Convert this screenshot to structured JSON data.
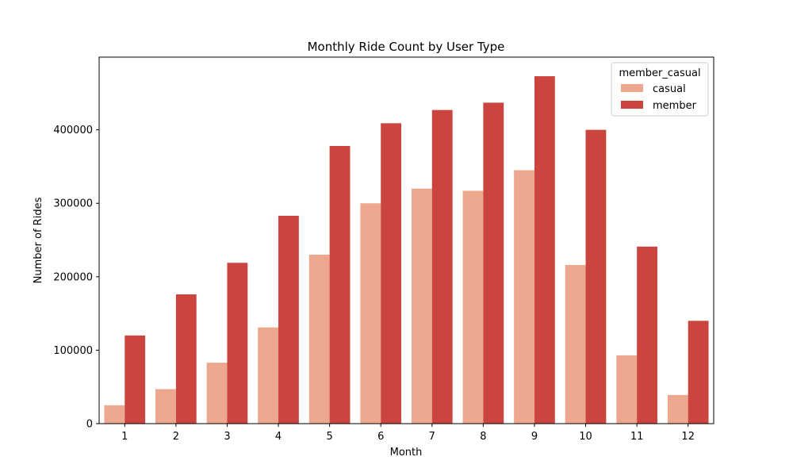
{
  "chart_data": {
    "type": "bar",
    "title": "Monthly Ride Count by User Type",
    "xlabel": "Month",
    "ylabel": "Number of Rides",
    "categories": [
      "1",
      "2",
      "3",
      "4",
      "5",
      "6",
      "7",
      "8",
      "9",
      "10",
      "11",
      "12"
    ],
    "ylim": [
      0,
      499000
    ],
    "yticks": [
      0,
      100000,
      200000,
      300000,
      400000
    ],
    "ytick_labels": [
      "0",
      "100000",
      "200000",
      "300000",
      "400000"
    ],
    "grid": false,
    "legend": {
      "title": "member_casual",
      "position": "top-right"
    },
    "series": [
      {
        "name": "casual",
        "color": "#eea78f",
        "values": [
          25000,
          47000,
          83000,
          131000,
          230000,
          300000,
          320000,
          317000,
          345000,
          216000,
          93000,
          39000
        ]
      },
      {
        "name": "member",
        "color": "#cb443d",
        "values": [
          120000,
          176000,
          219000,
          283000,
          378000,
          409000,
          427000,
          437000,
          473000,
          400000,
          241000,
          140000
        ]
      }
    ]
  }
}
